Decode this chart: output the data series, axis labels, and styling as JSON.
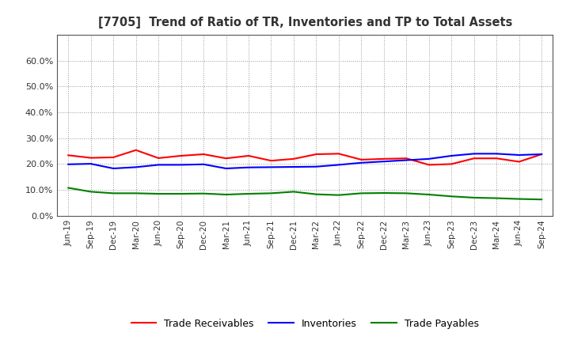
{
  "title": "[7705]  Trend of Ratio of TR, Inventories and TP to Total Assets",
  "x_labels": [
    "Jun-19",
    "Sep-19",
    "Dec-19",
    "Mar-20",
    "Jun-20",
    "Sep-20",
    "Dec-20",
    "Mar-21",
    "Jun-21",
    "Sep-21",
    "Dec-21",
    "Mar-22",
    "Jun-22",
    "Sep-22",
    "Dec-22",
    "Mar-23",
    "Jun-23",
    "Sep-23",
    "Dec-23",
    "Mar-24",
    "Jun-24",
    "Sep-24"
  ],
  "trade_receivables": [
    0.234,
    0.224,
    0.226,
    0.254,
    0.223,
    0.232,
    0.238,
    0.222,
    0.232,
    0.213,
    0.22,
    0.238,
    0.24,
    0.217,
    0.22,
    0.222,
    0.197,
    0.2,
    0.222,
    0.222,
    0.209,
    0.238
  ],
  "inventories": [
    0.199,
    0.201,
    0.183,
    0.188,
    0.197,
    0.197,
    0.199,
    0.183,
    0.187,
    0.188,
    0.189,
    0.19,
    0.197,
    0.205,
    0.21,
    0.215,
    0.22,
    0.232,
    0.24,
    0.24,
    0.235,
    0.238
  ],
  "trade_payables": [
    0.108,
    0.093,
    0.087,
    0.087,
    0.085,
    0.085,
    0.086,
    0.082,
    0.085,
    0.087,
    0.093,
    0.083,
    0.08,
    0.087,
    0.088,
    0.087,
    0.082,
    0.075,
    0.07,
    0.068,
    0.065,
    0.063
  ],
  "tr_color": "#FF0000",
  "inv_color": "#0000FF",
  "tp_color": "#008000",
  "ylim": [
    0.0,
    0.7
  ],
  "yticks": [
    0.0,
    0.1,
    0.2,
    0.3,
    0.4,
    0.5,
    0.6
  ],
  "legend_labels": [
    "Trade Receivables",
    "Inventories",
    "Trade Payables"
  ],
  "background_color": "#FFFFFF",
  "grid_color": "#999999",
  "title_color": "#333333"
}
